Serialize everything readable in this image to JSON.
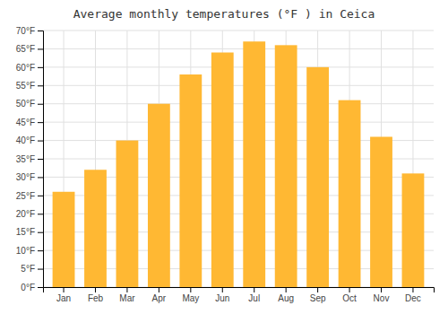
{
  "chart_data": {
    "type": "bar",
    "title": "Average monthly temperatures (°F ) in Ceica",
    "categories": [
      "Jan",
      "Feb",
      "Mar",
      "Apr",
      "May",
      "Jun",
      "Jul",
      "Aug",
      "Sep",
      "Oct",
      "Nov",
      "Dec"
    ],
    "values": [
      26,
      32,
      40,
      50,
      58,
      64,
      67,
      66,
      60,
      51,
      41,
      31
    ],
    "color": "#FFB833",
    "ylim": [
      0,
      70
    ],
    "yticks": [
      {
        "value": 0,
        "label": "0°F"
      },
      {
        "value": 5,
        "label": "5°F"
      },
      {
        "value": 10,
        "label": "10°F"
      },
      {
        "value": 15,
        "label": "15°F"
      },
      {
        "value": 20,
        "label": "20°F"
      },
      {
        "value": 25,
        "label": "25°F"
      },
      {
        "value": 30,
        "label": "30°F"
      },
      {
        "value": 35,
        "label": "35°F"
      },
      {
        "value": 40,
        "label": "40°F"
      },
      {
        "value": 45,
        "label": "45°F"
      },
      {
        "value": 50,
        "label": "50°F"
      },
      {
        "value": 55,
        "label": "55°F"
      },
      {
        "value": 60,
        "label": "60°F"
      },
      {
        "value": 65,
        "label": "65°F"
      },
      {
        "value": 70,
        "label": "70°F"
      }
    ],
    "grid": true
  }
}
